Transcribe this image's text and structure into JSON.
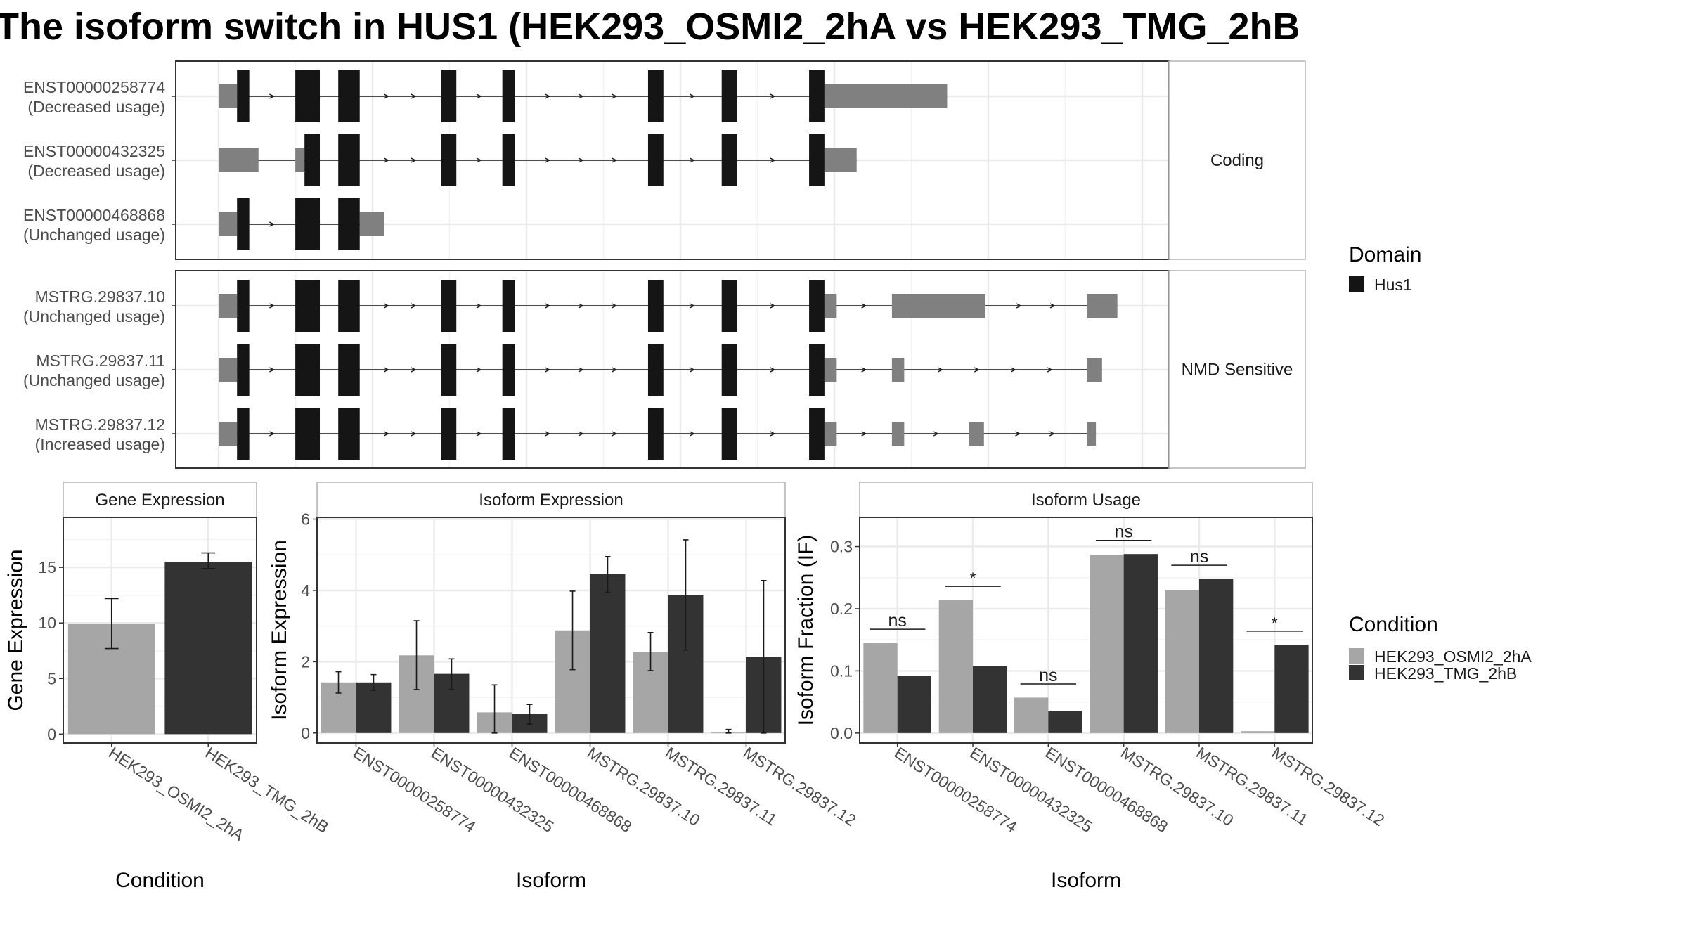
{
  "title": "The isoform switch in HUS1 (HEK293_OSMI2_2hA vs HEK293_TMG_2hB",
  "colors": {
    "osmi": "#a6a6a6",
    "tmg": "#333333",
    "exon": "#151515",
    "utr": "#808080",
    "grid": "#ebebeb",
    "panel_border": "#333333",
    "strip_border": "#b3b3b3"
  },
  "legends": {
    "domain": {
      "title": "Domain",
      "items": [
        {
          "label": "Hus1",
          "color": "#151515"
        }
      ]
    },
    "condition": {
      "title": "Condition",
      "items": [
        {
          "label": "HEK293_OSMI2_2hA",
          "color": "#a6a6a6"
        },
        {
          "label": "HEK293_TMG_2hB",
          "color": "#333333"
        }
      ]
    }
  },
  "chart_data": [
    {
      "type": "gene-structure",
      "groups": [
        {
          "label": "Coding",
          "transcripts": [
            {
              "name": "ENST00000258774",
              "status": "(Decreased usage)",
              "utr": [
                [
                  0,
                  1.2
                ],
                [
                  39.5,
                  47.5
                ]
              ],
              "exon": [
                [
                  1.2,
                  2
                ],
                [
                  5,
                  6.6
                ],
                [
                  7.8,
                  9.2
                ],
                [
                  14.5,
                  15.5
                ],
                [
                  18.5,
                  19.3
                ],
                [
                  28,
                  29
                ],
                [
                  32.8,
                  33.8
                ],
                [
                  38.5,
                  39.5
                ]
              ]
            },
            {
              "name": "ENST00000432325",
              "status": "(Decreased usage)",
              "utr": [
                [
                  0,
                  2.6
                ],
                [
                  5,
                  5.6
                ],
                [
                  39.5,
                  41.6
                ]
              ],
              "exon": [
                [
                  5.6,
                  6.6
                ],
                [
                  7.8,
                  9.2
                ],
                [
                  14.5,
                  15.5
                ],
                [
                  18.5,
                  19.3
                ],
                [
                  28,
                  29
                ],
                [
                  32.8,
                  33.8
                ],
                [
                  38.5,
                  39.5
                ]
              ]
            },
            {
              "name": "ENST00000468868",
              "status": "(Unchanged usage)",
              "utr": [
                [
                  0,
                  1.2
                ],
                [
                  9.2,
                  10.8
                ]
              ],
              "exon": [
                [
                  1.2,
                  2
                ],
                [
                  5,
                  6.6
                ],
                [
                  7.8,
                  9.2
                ]
              ]
            }
          ]
        },
        {
          "label": "NMD Sensitive",
          "transcripts": [
            {
              "name": "MSTRG.29837.10",
              "status": "(Unchanged usage)",
              "utr": [
                [
                  0,
                  1.2
                ],
                [
                  39.5,
                  40.3
                ],
                [
                  43.9,
                  50
                ],
                [
                  56.6,
                  58.6
                ]
              ],
              "exon": [
                [
                  1.2,
                  2
                ],
                [
                  5,
                  6.6
                ],
                [
                  7.8,
                  9.2
                ],
                [
                  14.5,
                  15.5
                ],
                [
                  18.5,
                  19.3
                ],
                [
                  28,
                  29
                ],
                [
                  32.8,
                  33.8
                ],
                [
                  38.5,
                  39.5
                ]
              ]
            },
            {
              "name": "MSTRG.29837.11",
              "status": "(Unchanged usage)",
              "utr": [
                [
                  0,
                  1.2
                ],
                [
                  39.5,
                  40.3
                ],
                [
                  43.9,
                  44.7
                ],
                [
                  56.6,
                  57.6
                ]
              ],
              "exon": [
                [
                  1.2,
                  2
                ],
                [
                  5,
                  6.6
                ],
                [
                  7.8,
                  9.2
                ],
                [
                  14.5,
                  15.5
                ],
                [
                  18.5,
                  19.3
                ],
                [
                  28,
                  29
                ],
                [
                  32.8,
                  33.8
                ],
                [
                  38.5,
                  39.5
                ]
              ]
            },
            {
              "name": "MSTRG.29837.12",
              "status": "(Increased usage)",
              "utr": [
                [
                  0,
                  1.2
                ],
                [
                  39.5,
                  40.3
                ],
                [
                  43.9,
                  44.7
                ],
                [
                  48.9,
                  49.9
                ],
                [
                  56.6,
                  57.2
                ]
              ],
              "exon": [
                [
                  1.2,
                  2
                ],
                [
                  5,
                  6.6
                ],
                [
                  7.8,
                  9.2
                ],
                [
                  14.5,
                  15.5
                ],
                [
                  18.5,
                  19.3
                ],
                [
                  28,
                  29
                ],
                [
                  32.8,
                  33.8
                ],
                [
                  38.5,
                  39.5
                ]
              ]
            }
          ]
        }
      ]
    },
    {
      "type": "bar",
      "title": "Gene Expression",
      "xlabel": "Condition",
      "ylabel": "Gene Expression",
      "categories": [
        "HEK293_OSMI2_2hA",
        "HEK293_TMG_2hB"
      ],
      "values": [
        9.9,
        15.5
      ],
      "error": [
        [
          7.7,
          12.2
        ],
        [
          14.9,
          16.3
        ]
      ],
      "yticks": [
        0,
        5,
        10,
        15
      ],
      "ylim": [
        -0.8,
        19.5
      ]
    },
    {
      "type": "bar",
      "title": "Isoform Expression",
      "xlabel": "Isoform",
      "ylabel": "Isoform Expression",
      "categories": [
        "ENST00000258774",
        "ENST00000432325",
        "ENST00000468868",
        "MSTRG.29837.10",
        "MSTRG.29837.11",
        "MSTRG.29837.12"
      ],
      "series": [
        {
          "name": "HEK293_OSMI2_2hA",
          "values": [
            1.42,
            2.18,
            0.58,
            2.88,
            2.28,
            0.03
          ],
          "error": [
            [
              1.12,
              1.72
            ],
            [
              1.22,
              3.15
            ],
            [
              0,
              1.35
            ],
            [
              1.78,
              3.98
            ],
            [
              1.75,
              2.82
            ],
            [
              0,
              0.1
            ]
          ]
        },
        {
          "name": "HEK293_TMG_2hB",
          "values": [
            1.42,
            1.66,
            0.53,
            4.46,
            3.88,
            2.14
          ],
          "error": [
            [
              1.2,
              1.64
            ],
            [
              1.22,
              2.08
            ],
            [
              0.25,
              0.8
            ],
            [
              3.95,
              4.95
            ],
            [
              2.33,
              5.42
            ],
            [
              0,
              4.28
            ]
          ]
        }
      ],
      "yticks": [
        0,
        2,
        4,
        6
      ],
      "ylim": [
        -0.28,
        6.05
      ]
    },
    {
      "type": "bar",
      "title": "Isoform Usage",
      "xlabel": "Isoform",
      "ylabel": "Isoform Fraction (IF)",
      "categories": [
        "ENST00000258774",
        "ENST00000432325",
        "ENST00000468868",
        "MSTRG.29837.10",
        "MSTRG.29837.11",
        "MSTRG.29837.12"
      ],
      "series": [
        {
          "name": "HEK293_OSMI2_2hA",
          "values": [
            0.145,
            0.214,
            0.057,
            0.287,
            0.23,
            0.003
          ]
        },
        {
          "name": "HEK293_TMG_2hB",
          "values": [
            0.092,
            0.108,
            0.035,
            0.288,
            0.248,
            0.142
          ]
        }
      ],
      "significance": [
        "ns",
        "*",
        "ns",
        "ns",
        "ns",
        "*"
      ],
      "yticks": [
        0.0,
        0.1,
        0.2,
        0.3
      ],
      "ytick_labels": [
        "0.0",
        "0.1",
        "0.2",
        "0.3"
      ],
      "ylim": [
        -0.016,
        0.347
      ]
    }
  ]
}
